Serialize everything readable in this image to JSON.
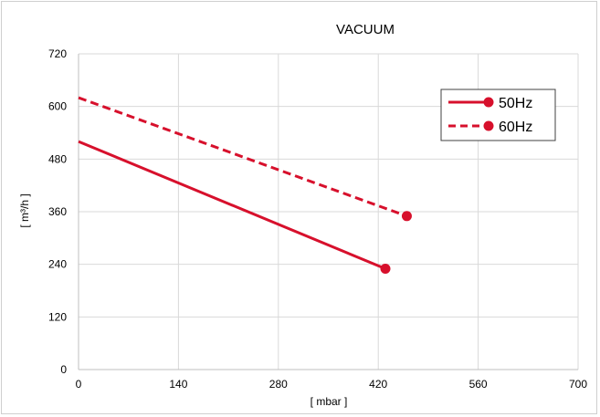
{
  "chart_data": {
    "type": "line",
    "title": "VACUUM",
    "xlabel": "[ mbar ]",
    "ylabel": "[ m³/h ]",
    "xlim": [
      0,
      700
    ],
    "ylim": [
      0,
      720
    ],
    "xticks": [
      0,
      140,
      280,
      420,
      560,
      700
    ],
    "yticks": [
      0,
      120,
      240,
      360,
      480,
      600,
      720
    ],
    "xtick_labels": [
      "0",
      "140",
      "280",
      "420",
      "560",
      "700"
    ],
    "ytick_labels": [
      "0",
      "120",
      "240",
      "360",
      "480",
      "600",
      "720"
    ],
    "grid": true,
    "legend_position": "top-right",
    "series": [
      {
        "name": "50Hz",
        "x": [
          0,
          430
        ],
        "y": [
          520,
          230
        ],
        "style": "solid",
        "end_marker": "circle",
        "color": "#d7102c"
      },
      {
        "name": "60Hz",
        "x": [
          0,
          460
        ],
        "y": [
          620,
          350
        ],
        "style": "dashed",
        "end_marker": "circle",
        "color": "#d7102c"
      }
    ]
  },
  "colors": {
    "series": "#d7102c",
    "grid": "#d9d9d9",
    "frame": "#cfcfcf"
  }
}
